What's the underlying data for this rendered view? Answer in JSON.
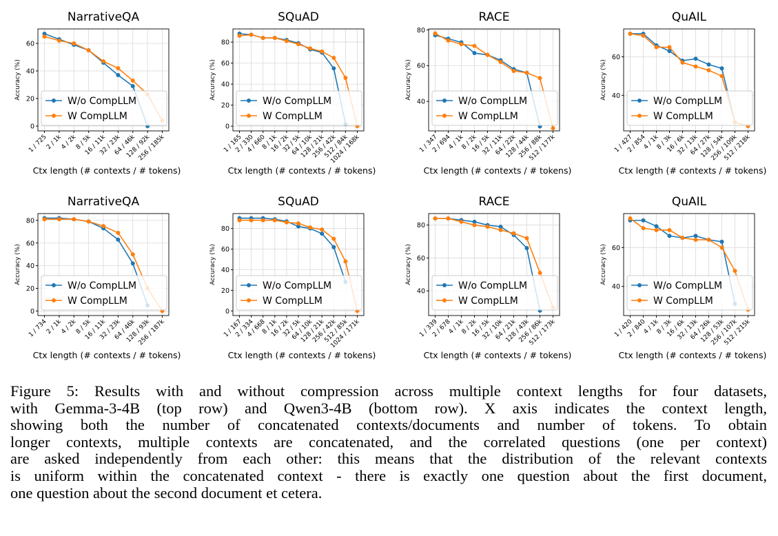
{
  "chart_data": [
    {
      "type": "line",
      "title": "NarrativeQA",
      "x_label": "Ctx length (# contexts / # tokens)",
      "y_label": "Accuracy (%)",
      "categories": [
        "1 / 725",
        "2 / 1k",
        "4 / 2k",
        "8 / 5k",
        "16 / 11k",
        "32 / 23k",
        "64 / 46k",
        "128 / 92k",
        "256 / 185k"
      ],
      "series": [
        {
          "name": "W/o CompLLM",
          "color": "#1f77b4",
          "values": [
            67,
            63,
            59,
            55,
            46,
            37,
            29,
            0,
            null
          ]
        },
        {
          "name": "W CompLLM",
          "color": "#ff7f0e",
          "values": [
            65,
            62,
            60,
            55,
            47,
            42,
            33,
            23,
            4
          ]
        }
      ],
      "ylim": [
        -3.5,
        70.5
      ],
      "yticks": [
        0,
        20,
        40,
        60
      ],
      "grid": true,
      "legend": "lower left"
    },
    {
      "type": "line",
      "title": "SQuAD",
      "x_label": "Ctx length (# contexts / # tokens)",
      "y_label": "Accuracy (%)",
      "categories": [
        "1 / 165",
        "2 / 330",
        "4 / 660",
        "8 / 1k",
        "16 / 2k",
        "32 / 5k",
        "64 / 10k",
        "128 / 21k",
        "256 / 42k",
        "512 / 84k",
        "1024 / 168k"
      ],
      "series": [
        {
          "name": "W/o CompLLM",
          "color": "#1f77b4",
          "values": [
            88,
            87,
            84,
            84,
            82,
            79,
            73,
            70,
            55,
            2,
            null
          ]
        },
        {
          "name": "W CompLLM",
          "color": "#ff7f0e",
          "values": [
            86,
            87,
            84,
            84,
            81,
            78,
            74,
            71,
            65,
            46,
            0
          ]
        }
      ],
      "ylim": [
        -4.5,
        92.5
      ],
      "yticks": [
        0,
        20,
        40,
        60,
        80
      ],
      "grid": true,
      "legend": "lower left"
    },
    {
      "type": "line",
      "title": "RACE",
      "x_label": "Ctx length (# contexts / # tokens)",
      "y_label": "Accuracy (%)",
      "categories": [
        "1 / 347",
        "2 / 694",
        "4 / 1k",
        "8 / 2k",
        "16 / 5k",
        "32 / 11k",
        "64 / 22k",
        "128 / 44k",
        "256 / 88k",
        "512 / 177k"
      ],
      "series": [
        {
          "name": "W/o CompLLM",
          "color": "#1f77b4",
          "values": [
            77,
            75,
            73,
            67,
            66,
            63,
            58,
            56,
            26,
            null
          ]
        },
        {
          "name": "W CompLLM",
          "color": "#ff7f0e",
          "values": [
            78,
            74,
            72,
            71,
            66,
            62,
            57,
            56,
            53,
            25
          ]
        }
      ],
      "ylim": [
        23.5,
        80.5
      ],
      "yticks": [
        40,
        60,
        80
      ],
      "grid": true,
      "legend": "lower left"
    },
    {
      "type": "line",
      "title": "QuAIL",
      "x_label": "Ctx length (# contexts / # tokens)",
      "y_label": "Accuracy (%)",
      "categories": [
        "1 / 427",
        "2 / 854",
        "4 / 1k",
        "8 / 3k",
        "16 / 6k",
        "32 / 13k",
        "64 / 27k",
        "128 / 54k",
        "256 / 109k",
        "512 / 218k"
      ],
      "series": [
        {
          "name": "W/o CompLLM",
          "color": "#1f77b4",
          "values": [
            72,
            72,
            66,
            63,
            58,
            59,
            56,
            54,
            26,
            null
          ]
        },
        {
          "name": "W CompLLM",
          "color": "#ff7f0e",
          "values": [
            72,
            71,
            65,
            65,
            57,
            55,
            53,
            50,
            26,
            24
          ]
        }
      ],
      "ylim": [
        21.5,
        74.5
      ],
      "yticks": [
        40,
        60
      ],
      "grid": true,
      "legend": "lower left"
    },
    {
      "type": "line",
      "title": "NarrativeQA",
      "x_label": "Ctx length (# contexts / # tokens)",
      "y_label": "Accuracy (%)",
      "categories": [
        "1 / 734",
        "2 / 1k",
        "4 / 2k",
        "8 / 5k",
        "16 / 11k",
        "32 / 23k",
        "64 / 46k",
        "128 / 93k",
        "256 / 187k"
      ],
      "series": [
        {
          "name": "W/o CompLLM",
          "color": "#1f77b4",
          "values": [
            82,
            82,
            81,
            79,
            73,
            63,
            42,
            5,
            null
          ]
        },
        {
          "name": "W CompLLM",
          "color": "#ff7f0e",
          "values": [
            81,
            81,
            81,
            79,
            75,
            69,
            50,
            20,
            0
          ]
        }
      ],
      "ylim": [
        -4,
        86
      ],
      "yticks": [
        0,
        20,
        40,
        60,
        80
      ],
      "grid": true,
      "legend": "lower left"
    },
    {
      "type": "line",
      "title": "SQuAD",
      "x_label": "Ctx length (# contexts / # tokens)",
      "y_label": "Accuracy (%)",
      "categories": [
        "1 / 167",
        "2 / 334",
        "4 / 668",
        "8 / 1k",
        "16 / 2k",
        "32 / 5k",
        "64 / 10k",
        "128 / 21k",
        "256 / 42k",
        "512 / 85k",
        "1024 / 171k"
      ],
      "series": [
        {
          "name": "W/o CompLLM",
          "color": "#1f77b4",
          "values": [
            90,
            90,
            90,
            89,
            87,
            82,
            80,
            75,
            62,
            28,
            null
          ]
        },
        {
          "name": "W CompLLM",
          "color": "#ff7f0e",
          "values": [
            88,
            88,
            88,
            88,
            86,
            85,
            81,
            79,
            70,
            48,
            0
          ]
        }
      ],
      "ylim": [
        -4.5,
        94.5
      ],
      "yticks": [
        0,
        20,
        40,
        60,
        80
      ],
      "grid": true,
      "legend": "lower left"
    },
    {
      "type": "line",
      "title": "RACE",
      "x_label": "Ctx length (# contexts / # tokens)",
      "y_label": "Accuracy (%)",
      "categories": [
        "1 / 339",
        "2 / 678",
        "4 / 1k",
        "8 / 2k",
        "16 / 5k",
        "32 / 10k",
        "64 / 21k",
        "128 / 43k",
        "256 / 86k",
        "512 / 173k"
      ],
      "series": [
        {
          "name": "W/o CompLLM",
          "color": "#1f77b4",
          "values": [
            84,
            84,
            83,
            82,
            80,
            79,
            74,
            66,
            28,
            null
          ]
        },
        {
          "name": "W CompLLM",
          "color": "#ff7f0e",
          "values": [
            84,
            84,
            82,
            80,
            79,
            77,
            75,
            72,
            51,
            30
          ]
        }
      ],
      "ylim": [
        25,
        87
      ],
      "yticks": [
        40,
        60,
        80
      ],
      "grid": true,
      "legend": "lower left"
    },
    {
      "type": "line",
      "title": "QuAIL",
      "x_label": "Ctx length (# contexts / # tokens)",
      "y_label": "Accuracy (%)",
      "categories": [
        "1 / 420",
        "2 / 840",
        "4 / 1k",
        "8 / 3k",
        "16 / 6k",
        "32 / 13k",
        "64 / 26k",
        "128 / 53k",
        "256 / 107k",
        "512 / 215k"
      ],
      "series": [
        {
          "name": "W/o CompLLM",
          "color": "#1f77b4",
          "values": [
            74,
            74,
            71,
            66,
            65,
            66,
            64,
            63,
            31,
            null
          ]
        },
        {
          "name": "W CompLLM",
          "color": "#ff7f0e",
          "values": [
            75,
            70,
            69,
            69,
            65,
            64,
            64,
            60,
            48,
            28
          ]
        }
      ],
      "ylim": [
        25,
        77.5
      ],
      "yticks": [
        40,
        60
      ],
      "grid": true,
      "legend": "lower left"
    }
  ],
  "caption": [
    "Figure 5: Results with and without compression across multiple context lengths for four datasets,",
    "with Gemma-3-4B (top row) and Qwen3-4B (bottom row).  X axis indicates the context length,",
    "showing both the number of concatenated contexts/documents and number of tokens.  To obtain",
    "longer contexts, multiple contexts are concatenated, and the correlated questions (one per context)",
    "are asked independently from each other: this means that the distribution of the relevant contexts",
    "is uniform within the concatenated context - there is exactly one question about the first document,",
    "one question about the second document et cetera."
  ]
}
